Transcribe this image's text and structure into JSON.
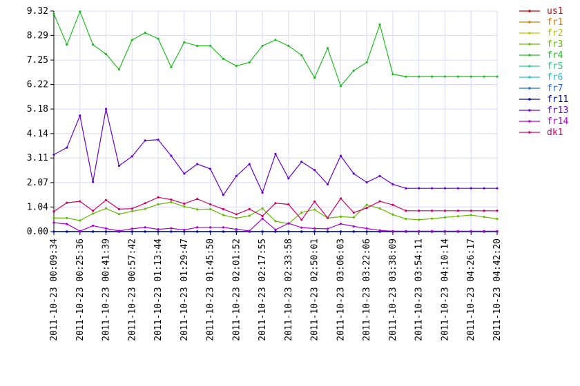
{
  "chart_data": {
    "type": "line",
    "title": "",
    "xlabel": "",
    "ylabel": "",
    "ylim": [
      0,
      9.32
    ],
    "y_ticks": [
      "0.00",
      "1.04",
      "2.07",
      "3.11",
      "4.14",
      "5.18",
      "6.22",
      "7.25",
      "8.29",
      "9.32"
    ],
    "grid": true,
    "legend_position": "right",
    "x": [
      "2011-10-23 00:09:34",
      "2011-10-23 00:17:35",
      "2011-10-23 00:25:36",
      "2011-10-23 00:33:38",
      "2011-10-23 00:41:39",
      "2011-10-23 00:49:40",
      "2011-10-23 00:57:42",
      "2011-10-23 01:05:43",
      "2011-10-23 01:13:44",
      "2011-10-23 01:21:46",
      "2011-10-23 01:29:47",
      "2011-10-23 01:37:48",
      "2011-10-23 01:45:50",
      "2011-10-23 01:53:51",
      "2011-10-23 02:01:52",
      "2011-10-23 02:09:53",
      "2011-10-23 02:17:55",
      "2011-10-23 02:25:56",
      "2011-10-23 02:33:58",
      "2011-10-23 02:41:59",
      "2011-10-23 02:50:01",
      "2011-10-23 02:58:02",
      "2011-10-23 03:06:03",
      "2011-10-23 03:14:04",
      "2011-10-23 03:22:06",
      "2011-10-23 03:30:07",
      "2011-10-23 03:38:09",
      "2011-10-23 03:46:10",
      "2011-10-23 03:54:11",
      "2011-10-23 04:02:12",
      "2011-10-23 04:10:14",
      "2011-10-23 04:18:15",
      "2011-10-23 04:26:17",
      "2011-10-23 04:34:18",
      "2011-10-23 04:42:20"
    ],
    "x_tick_labels": [
      "2011-10-23 00:09:34",
      "2011-10-23 00:25:36",
      "2011-10-23 00:41:39",
      "2011-10-23 00:57:42",
      "2011-10-23 01:13:44",
      "2011-10-23 01:29:47",
      "2011-10-23 01:45:50",
      "2011-10-23 02:01:52",
      "2011-10-23 02:17:55",
      "2011-10-23 02:33:58",
      "2011-10-23 02:50:01",
      "2011-10-23 03:06:03",
      "2011-10-23 03:22:06",
      "2011-10-23 03:38:09",
      "2011-10-23 03:54:11",
      "2011-10-23 04:10:14",
      "2011-10-23 04:26:17",
      "2011-10-23 04:42:20"
    ],
    "series": [
      {
        "name": "us1",
        "color": "#cc0000",
        "values": [
          0,
          0,
          0,
          0,
          0,
          0,
          0,
          0,
          0,
          0,
          0,
          0,
          0,
          0,
          0,
          0,
          0,
          0,
          0,
          0,
          0,
          0,
          0,
          0,
          0,
          0,
          0,
          0,
          0,
          0,
          0,
          0,
          0,
          0,
          0
        ]
      },
      {
        "name": "fr1",
        "color": "#cc7a00",
        "values": [
          0,
          0,
          0,
          0,
          0,
          0,
          0,
          0,
          0,
          0,
          0,
          0,
          0,
          0,
          0,
          0,
          0,
          0,
          0,
          0,
          0,
          0,
          0,
          0,
          0,
          0,
          0,
          0,
          0,
          0,
          0,
          0,
          0,
          0,
          0
        ]
      },
      {
        "name": "fr2",
        "color": "#b8c400",
        "values": [
          0,
          0,
          0,
          0,
          0,
          0,
          0,
          0,
          0,
          0,
          0,
          0,
          0,
          0,
          0,
          0,
          0,
          0,
          0,
          0,
          0,
          0,
          0,
          0,
          0,
          0,
          0,
          0,
          0,
          0,
          0,
          0,
          0,
          0,
          0
        ]
      },
      {
        "name": "fr3",
        "color": "#66bb00",
        "values": [
          0.58,
          0.57,
          0.47,
          0.76,
          0.98,
          0.74,
          0.86,
          0.96,
          1.15,
          1.24,
          1.06,
          0.94,
          0.95,
          0.7,
          0.57,
          0.67,
          0.98,
          0.44,
          0.33,
          0.81,
          0.93,
          0.57,
          0.63,
          0.6,
          1.13,
          0.98,
          0.72,
          0.54,
          0.5,
          0.55,
          0.6,
          0.65,
          0.7,
          0.62,
          0.54
        ]
      },
      {
        "name": "fr4",
        "color": "#22bb22",
        "values": [
          9.2,
          7.9,
          9.3,
          7.9,
          7.5,
          6.85,
          8.1,
          8.4,
          8.15,
          6.95,
          8.0,
          7.85,
          7.85,
          7.3,
          7.0,
          7.15,
          7.85,
          8.1,
          7.85,
          7.45,
          6.5,
          7.75,
          6.15,
          6.8,
          7.15,
          8.75,
          6.65,
          6.55,
          6.55,
          6.55,
          6.55,
          6.55,
          6.55,
          6.55,
          6.55
        ]
      },
      {
        "name": "fr5",
        "color": "#22cc88",
        "values": [
          0,
          0,
          0,
          0,
          0,
          0,
          0,
          0,
          0,
          0,
          0,
          0,
          0,
          0,
          0,
          0,
          0,
          0,
          0,
          0,
          0,
          0,
          0,
          0,
          0,
          0,
          0,
          0,
          0,
          0,
          0,
          0,
          0,
          0,
          0
        ]
      },
      {
        "name": "fr6",
        "color": "#22bbcc",
        "values": [
          0,
          0,
          0,
          0,
          0,
          0,
          0,
          0,
          0,
          0,
          0,
          0,
          0,
          0,
          0,
          0,
          0,
          0,
          0,
          0,
          0,
          0,
          0,
          0,
          0,
          0,
          0,
          0,
          0,
          0,
          0,
          0,
          0,
          0,
          0
        ]
      },
      {
        "name": "fr7",
        "color": "#2266cc",
        "values": [
          0,
          0,
          0,
          0,
          0,
          0,
          0,
          0,
          0,
          0,
          0,
          0,
          0,
          0,
          0,
          0,
          0,
          0,
          0,
          0,
          0,
          0,
          0,
          0,
          0,
          0,
          0,
          0,
          0,
          0,
          0,
          0,
          0,
          0,
          0
        ]
      },
      {
        "name": "fr11",
        "color": "#0000aa",
        "values": [
          0,
          0,
          0,
          0,
          0,
          0,
          0,
          0,
          0,
          0,
          0,
          0,
          0,
          0,
          0,
          0,
          0,
          0,
          0,
          0,
          0,
          0,
          0,
          0,
          0,
          0,
          0,
          0,
          0,
          0,
          0,
          0,
          0,
          0,
          0
        ]
      },
      {
        "name": "fr13",
        "color": "#6600cc",
        "values": [
          3.25,
          3.55,
          4.9,
          2.1,
          5.18,
          2.78,
          3.18,
          3.85,
          3.88,
          3.2,
          2.45,
          2.85,
          2.65,
          1.55,
          2.35,
          2.85,
          1.65,
          3.28,
          2.25,
          2.95,
          2.6,
          2.0,
          3.2,
          2.45,
          2.08,
          2.35,
          2.0,
          1.83,
          1.83,
          1.83,
          1.83,
          1.83,
          1.83,
          1.83,
          1.83
        ]
      },
      {
        "name": "fr14",
        "color": "#aa00cc",
        "values": [
          0.38,
          0.32,
          0.02,
          0.25,
          0.13,
          0.03,
          0.12,
          0.18,
          0.1,
          0.14,
          0.07,
          0.18,
          0.18,
          0.18,
          0.1,
          0.03,
          0.55,
          0.08,
          0.35,
          0.17,
          0.13,
          0.12,
          0.33,
          0.22,
          0.13,
          0.05,
          0.02,
          0.02,
          0.02,
          0.02,
          0.02,
          0.02,
          0.02,
          0.02,
          0.02
        ]
      },
      {
        "name": "dk1",
        "color": "#cc0066",
        "values": [
          0.85,
          1.22,
          1.28,
          0.88,
          1.33,
          0.95,
          0.97,
          1.2,
          1.45,
          1.35,
          1.18,
          1.38,
          1.15,
          0.95,
          0.73,
          0.95,
          0.66,
          1.2,
          1.15,
          0.5,
          1.27,
          0.58,
          1.4,
          0.8,
          1.0,
          1.28,
          1.13,
          0.88,
          0.88,
          0.88,
          0.88,
          0.88,
          0.88,
          0.88,
          0.88
        ]
      }
    ]
  }
}
